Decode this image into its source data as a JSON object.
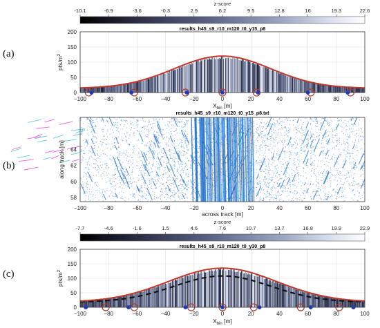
{
  "colors": {
    "curve": "#c0392b",
    "curve_dashed": "#111111",
    "circle": "#b03a2e",
    "dot": "#1f3fcf",
    "scatter": "#1f6fc9",
    "colormap": [
      "#000000",
      "#2a2d44",
      "#5a6283",
      "#9aa4bf",
      "#d9e0ee",
      "#ffffff"
    ]
  },
  "labels": {
    "a": "(a)",
    "b": "(b)",
    "c": "(c)"
  },
  "chart_data": [
    {
      "id": "colorbar-a",
      "type": "heatmap",
      "title": "z-score",
      "ticks": [
        "-10.1",
        "-6.9",
        "-3.6",
        "-0.3",
        "2.9",
        "6.2",
        "9.5",
        "12.8",
        "16",
        "19.3",
        "22.6"
      ],
      "range": [
        -10.1,
        22.6
      ]
    },
    {
      "id": "panel-a",
      "type": "bar",
      "title": "results_h45_s9_r10_m120_t0_y15_p8",
      "xlabel": "X_bin [m]",
      "ylabel": "pts/m^2",
      "xlim": [
        -100,
        100
      ],
      "ylim": [
        0,
        200
      ],
      "xticks": [
        "−100",
        "−80",
        "−60",
        "−40",
        "−20",
        "0",
        "20",
        "40",
        "60",
        "80",
        "100"
      ],
      "yticks": [
        "0",
        "50",
        "100",
        "150",
        "200"
      ],
      "grid": true,
      "peak": 120,
      "sigma": 34,
      "baseline": 14,
      "circles_x": [
        -94,
        -62,
        -26,
        0,
        24,
        62,
        90
      ],
      "dots_x": [
        -92,
        -64,
        -25,
        0,
        25,
        60,
        88
      ]
    },
    {
      "id": "panel-b",
      "type": "scatter",
      "title": "results_h45_s9_r10_m120_t0_y15_p8.txt",
      "xlabel": "across track [m]",
      "ylabel": "along track [m]",
      "xlim": [
        -100,
        100
      ],
      "ylim": [
        57.5,
        68
      ],
      "xticks": [
        "−100",
        "−80",
        "−60",
        "−40",
        "−20",
        "0",
        "20",
        "40",
        "60",
        "80",
        "100"
      ],
      "yticks": [
        "58",
        "60",
        "62",
        "64"
      ],
      "grid": false,
      "seams_x": [
        -61,
        -23,
        23,
        61
      ]
    },
    {
      "id": "colorbar-c",
      "type": "heatmap",
      "title": "z-score",
      "ticks": [
        "-7.7",
        "-4.6",
        "-1.6",
        "1.5",
        "4.6",
        "7.6",
        "10.7",
        "13.7",
        "16.8",
        "19.9",
        "22.9"
      ],
      "range": [
        -7.7,
        22.9
      ]
    },
    {
      "id": "panel-c",
      "type": "bar",
      "title": "results_h45_s9_r10_m120_t0_y30_p8",
      "xlabel": "X_bin [m]",
      "ylabel": "pts/m^2",
      "xlim": [
        -100,
        100
      ],
      "ylim": [
        0,
        200
      ],
      "xticks": [
        "−100",
        "−80",
        "−60",
        "−40",
        "−20",
        "0",
        "20",
        "40",
        "60",
        "80",
        "100"
      ],
      "yticks": [
        "0",
        "50",
        "100",
        "150",
        "200"
      ],
      "grid": true,
      "peak": 135,
      "sigma": 38,
      "baseline": 18,
      "dashed_peak": 108,
      "dashed_sigma": 34,
      "circles_x": [
        -82,
        -62,
        -22,
        0,
        22,
        55,
        82
      ],
      "dots_x": [
        -96,
        -66,
        -26,
        0,
        26,
        62,
        92
      ]
    }
  ]
}
